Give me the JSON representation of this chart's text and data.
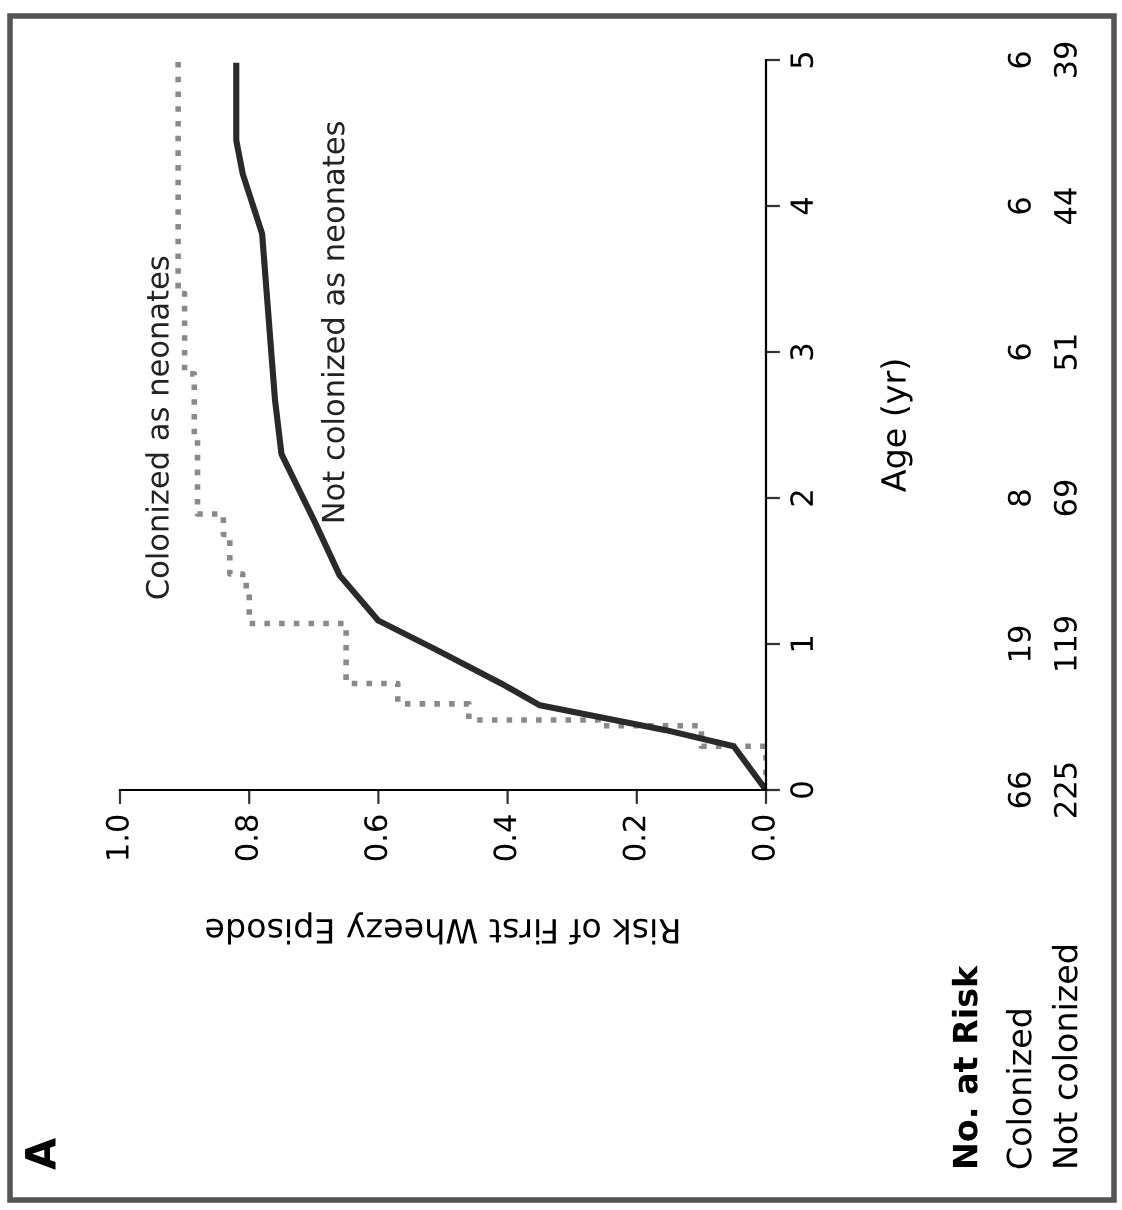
{
  "chart_data": {
    "type": "line",
    "xlabel": "Risk of First Wheezy Episode",
    "ylabel": "Age (yr)",
    "xlim": [
      1,
      0
    ],
    "xticks": [
      {
        "value": 1,
        "label": "1.0"
      },
      {
        "value": 0.8,
        "label": "0.8"
      },
      {
        "value": 0.6,
        "label": "0.6"
      },
      {
        "value": 0.4,
        "label": "0.4"
      },
      {
        "value": 0.2,
        "label": "0.2"
      },
      {
        "value": 0,
        "label": "0.0"
      }
    ],
    "ylim": [
      0,
      5
    ],
    "yticks": [
      0,
      1,
      2,
      3,
      4,
      5
    ],
    "grid": false,
    "legend": false,
    "marker": "none",
    "series": [
      {
        "name": "Colonized as neonates",
        "color": "#8a8a8a",
        "line_style": "dotted",
        "x": [
          0,
          0,
          0.1,
          0.1,
          0.26,
          0.26,
          0.46,
          0.46,
          0.57,
          0.57,
          0.65,
          0.65,
          0.8,
          0.8,
          0.81,
          0.81,
          0.83,
          0.83,
          0.84,
          0.84,
          0.88,
          0.88,
          0.885,
          0.885,
          0.9,
          0.9,
          0.91,
          0.91
        ],
        "values": [
          0,
          0.3,
          0.3,
          0.44,
          0.44,
          0.48,
          0.48,
          0.59,
          0.59,
          0.73,
          0.73,
          1.14,
          1.14,
          1.4,
          1.4,
          1.48,
          1.48,
          1.75,
          1.75,
          1.89,
          1.89,
          2.4,
          2.4,
          2.85,
          2.85,
          3.4,
          3.4,
          5.0
        ]
      },
      {
        "name": "Not colonized as neonates",
        "color": "#2a2a2a",
        "line_style": "solid",
        "x": [
          0,
          0.05,
          0.155,
          0.35,
          0.41,
          0.51,
          0.6,
          0.66,
          0.7,
          0.75,
          0.76,
          0.765,
          0.78,
          0.81,
          0.82,
          0.82
        ],
        "values": [
          0,
          0.3,
          0.41,
          0.58,
          0.73,
          0.96,
          1.16,
          1.47,
          1.85,
          2.3,
          2.67,
          2.95,
          3.81,
          4.22,
          4.45,
          4.96
        ]
      }
    ],
    "annotations": [
      "A",
      "No. at Risk",
      "Colonized",
      "66",
      "19",
      "8",
      "6",
      "6",
      "6",
      "Not colonized",
      "225",
      "119",
      "69",
      "51",
      "44",
      "39"
    ]
  }
}
